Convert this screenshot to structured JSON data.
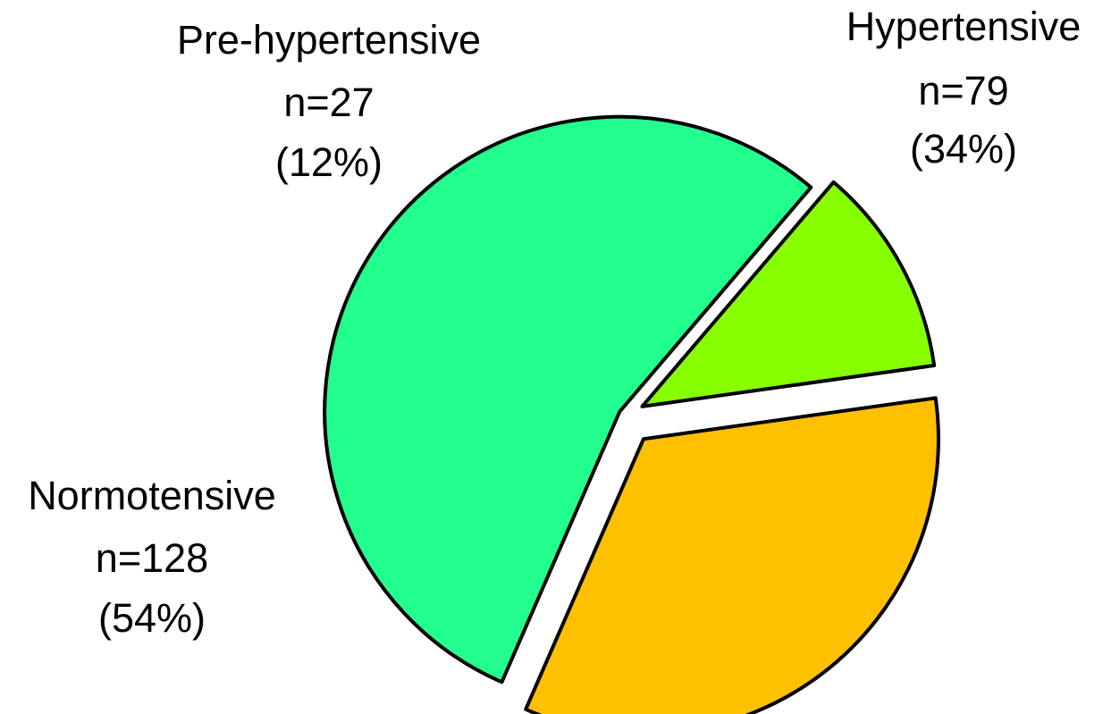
{
  "chart_data": {
    "type": "pie",
    "start": "Hypertensive",
    "direction": "clockwise from the right, Hypertensive slice upper-right",
    "slices": [
      {
        "name": "Hypertensive",
        "value": 79,
        "percent": 34,
        "color": "#ffc000",
        "label": {
          "name": "Hypertensive",
          "n": "n=79",
          "pct": "(34%)"
        }
      },
      {
        "name": "Normotensive",
        "value": 128,
        "percent": 54,
        "color": "#22ff8e",
        "label": {
          "name": "Normotensive",
          "n": "n=128",
          "pct": "(54%)"
        }
      },
      {
        "name": "Pre-hypertensive",
        "value": 27,
        "percent": 12,
        "color": "#88ff00",
        "label": {
          "name": "Pre-hypertensive",
          "n": "n=27",
          "pct": "(12%)"
        }
      }
    ]
  }
}
